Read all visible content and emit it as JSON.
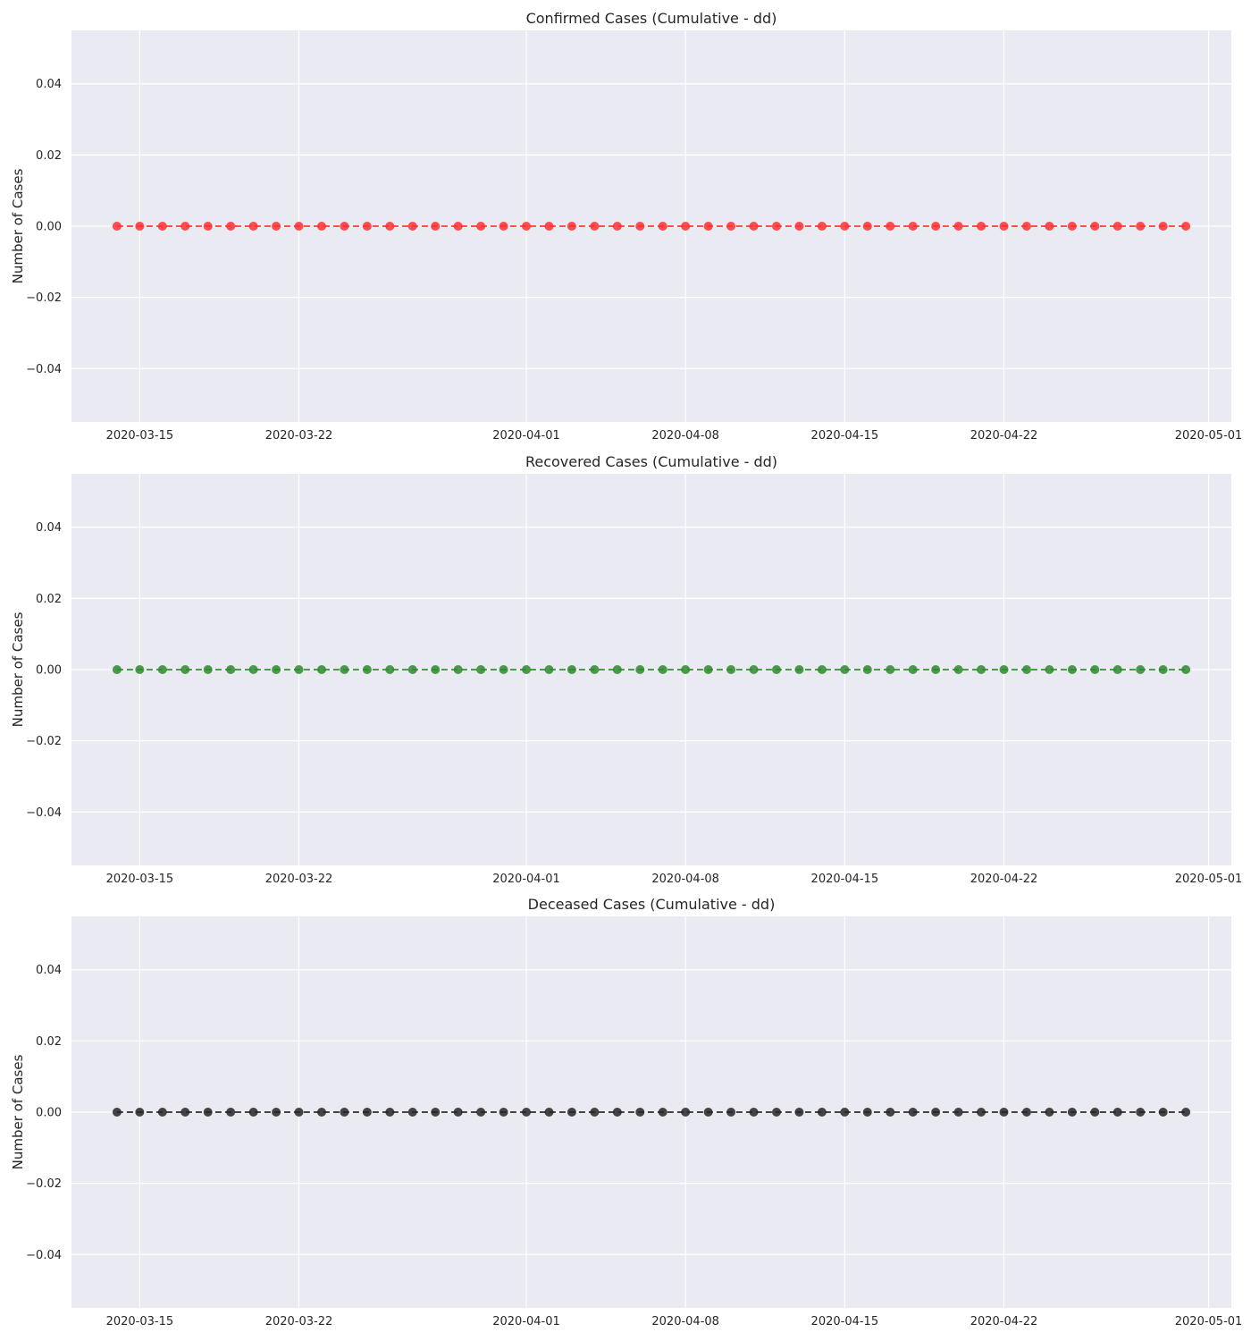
{
  "chart_data": [
    {
      "type": "line",
      "title": "Confirmed Cases (Cumulative - dd)",
      "xlabel": "",
      "ylabel": "Number of Cases",
      "color": "#ff3030",
      "x_start": "2020-03-14",
      "x_end": "2020-04-30",
      "x_values": "daily dates 2020-03-14 through 2020-04-30",
      "y_values": "0 for every date",
      "xlim": [
        "2020-03-12",
        "2020-05-02"
      ],
      "ylim": [
        -0.055,
        0.055
      ],
      "x_ticks": [
        "2020-03-15",
        "2020-03-22",
        "2020-04-01",
        "2020-04-08",
        "2020-04-15",
        "2020-04-22",
        "2020-05-01"
      ],
      "y_ticks": [
        "0.04",
        "0.02",
        "0.00",
        "−0.02",
        "−0.04"
      ],
      "grid": true
    },
    {
      "type": "line",
      "title": "Recovered Cases (Cumulative - dd)",
      "xlabel": "",
      "ylabel": "Number of Cases",
      "color": "#2e8b2e",
      "x_start": "2020-03-14",
      "x_end": "2020-04-30",
      "x_values": "daily dates 2020-03-14 through 2020-04-30",
      "y_values": "0 for every date",
      "xlim": [
        "2020-03-12",
        "2020-05-02"
      ],
      "ylim": [
        -0.055,
        0.055
      ],
      "x_ticks": [
        "2020-03-15",
        "2020-03-22",
        "2020-04-01",
        "2020-04-08",
        "2020-04-15",
        "2020-04-22",
        "2020-05-01"
      ],
      "y_ticks": [
        "0.04",
        "0.02",
        "0.00",
        "−0.02",
        "−0.04"
      ],
      "grid": true
    },
    {
      "type": "line",
      "title": "Deceased Cases (Cumulative - dd)",
      "xlabel": "",
      "ylabel": "Number of Cases",
      "color": "#262626",
      "x_start": "2020-03-14",
      "x_end": "2020-04-30",
      "x_values": "daily dates 2020-03-14 through 2020-04-30",
      "y_values": "0 for every date",
      "xlim": [
        "2020-03-12",
        "2020-05-02"
      ],
      "ylim": [
        -0.055,
        0.055
      ],
      "x_ticks": [
        "2020-03-15",
        "2020-03-22",
        "2020-04-01",
        "2020-04-08",
        "2020-04-15",
        "2020-04-22",
        "2020-05-01"
      ],
      "y_ticks": [
        "0.04",
        "0.02",
        "0.00",
        "−0.02",
        "−0.04"
      ],
      "grid": true
    }
  ]
}
